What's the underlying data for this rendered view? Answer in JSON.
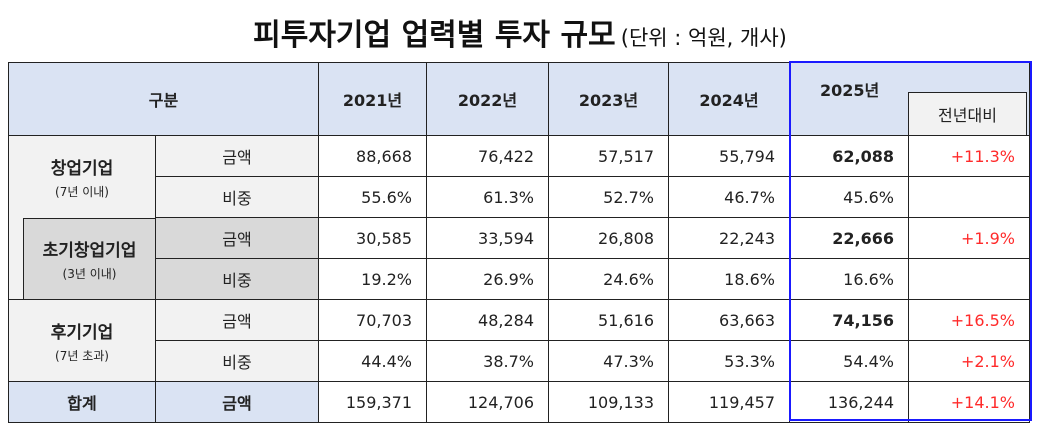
{
  "title": "피투자기업 업력별 투자 규모",
  "unit": "(단위 : 억원, 개사)",
  "header": {
    "category": "구분",
    "years": [
      "2021년",
      "2022년",
      "2023년",
      "2024년",
      "2025년"
    ],
    "yoy": "전년대비"
  },
  "groups": [
    {
      "name": "창업기업",
      "sub": "(7년 이내)",
      "rows": [
        {
          "metric": "금액",
          "values": [
            "88,668",
            "76,422",
            "57,517",
            "55,794",
            "62,088"
          ],
          "yoy": "+11.3%"
        },
        {
          "metric": "비중",
          "values": [
            "55.6%",
            "61.3%",
            "52.7%",
            "46.7%",
            "45.6%"
          ],
          "yoy": ""
        }
      ]
    },
    {
      "name": "초기창업기업",
      "sub": "(3년 이내)",
      "rows": [
        {
          "metric": "금액",
          "values": [
            "30,585",
            "33,594",
            "26,808",
            "22,243",
            "22,666"
          ],
          "yoy": "+1.9%"
        },
        {
          "metric": "비중",
          "values": [
            "19.2%",
            "26.9%",
            "24.6%",
            "18.6%",
            "16.6%"
          ],
          "yoy": ""
        }
      ]
    },
    {
      "name": "후기기업",
      "sub": "(7년 초과)",
      "rows": [
        {
          "metric": "금액",
          "values": [
            "70,703",
            "48,284",
            "51,616",
            "63,663",
            "74,156"
          ],
          "yoy": "+16.5%"
        },
        {
          "metric": "비중",
          "values": [
            "44.4%",
            "38.7%",
            "47.3%",
            "53.3%",
            "54.4%"
          ],
          "yoy": "+2.1%"
        }
      ]
    }
  ],
  "total": {
    "name": "합계",
    "metric": "금액",
    "values": [
      "159,371",
      "124,706",
      "109,133",
      "119,457",
      "136,244"
    ],
    "yoy": "+14.1%"
  }
}
